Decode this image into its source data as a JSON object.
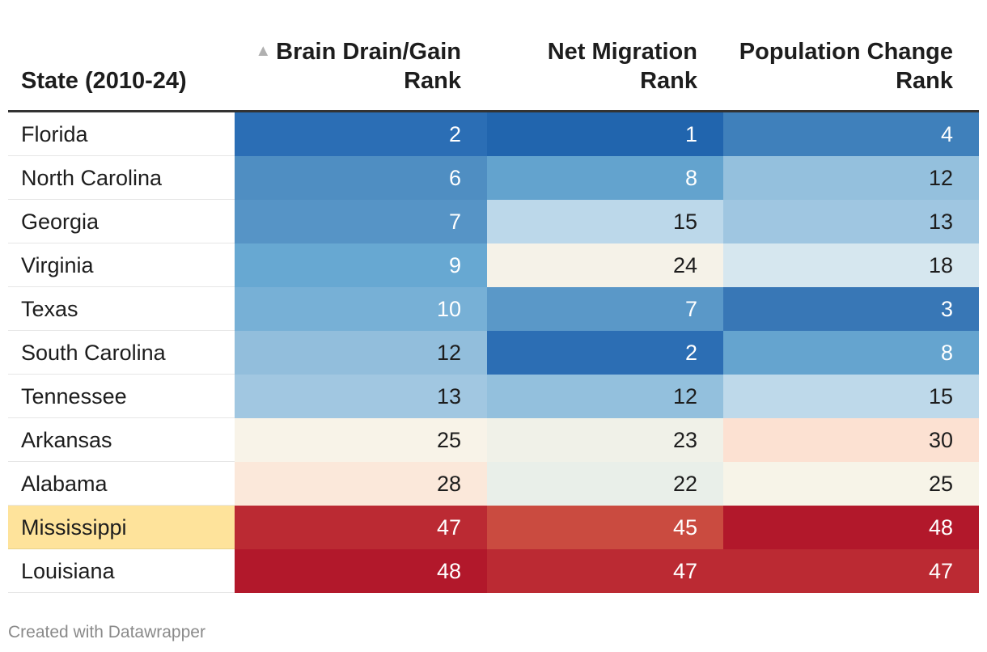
{
  "chart_data": {
    "type": "table",
    "columns": [
      "State (2010-24)",
      "Brain Drain/Gain Rank",
      "Net Migration Rank",
      "Population Change Rank"
    ],
    "sorted_column": "Brain Drain/Gain Rank",
    "sort_direction": "ascending",
    "rows": [
      {
        "state": "Florida",
        "brain": "2",
        "net": "1",
        "pop": "4",
        "brain_color": "#2b6eb5",
        "net_color": "#2165ae",
        "pop_color": "#3f80bb"
      },
      {
        "state": "North Carolina",
        "brain": "6",
        "net": "8",
        "pop": "12",
        "brain_color": "#4f8ec2",
        "net_color": "#63a3ce",
        "pop_color": "#94c0dd"
      },
      {
        "state": "Georgia",
        "brain": "7",
        "net": "15",
        "pop": "13",
        "brain_color": "#5694c6",
        "net_color": "#bcd8ea",
        "pop_color": "#9fc6e1"
      },
      {
        "state": "Virginia",
        "brain": "9",
        "net": "24",
        "pop": "18",
        "brain_color": "#67a8d2",
        "net_color": "#f5f2e8",
        "pop_color": "#d6e7ef"
      },
      {
        "state": "Texas",
        "brain": "10",
        "net": "7",
        "pop": "3",
        "brain_color": "#77b0d6",
        "net_color": "#5a98c8",
        "pop_color": "#3877b6"
      },
      {
        "state": "South Carolina",
        "brain": "12",
        "net": "2",
        "pop": "8",
        "brain_color": "#92bedc",
        "net_color": "#2c6eb4",
        "pop_color": "#65a4cf"
      },
      {
        "state": "Tennessee",
        "brain": "13",
        "net": "12",
        "pop": "15",
        "brain_color": "#a1c7e1",
        "net_color": "#93c0dd",
        "pop_color": "#bed9ea"
      },
      {
        "state": "Arkansas",
        "brain": "25",
        "net": "23",
        "pop": "30",
        "brain_color": "#f8f3e8",
        "net_color": "#f0f1e8",
        "pop_color": "#fce1d2"
      },
      {
        "state": "Alabama",
        "brain": "28",
        "net": "22",
        "pop": "25",
        "brain_color": "#fbe8da",
        "net_color": "#e9efe9",
        "pop_color": "#f7f4e8"
      },
      {
        "state": "Mississippi",
        "brain": "47",
        "net": "45",
        "pop": "48",
        "brain_color": "#bb2a33",
        "net_color": "#ca4b40",
        "pop_color": "#b2182b",
        "highlight": true
      },
      {
        "state": "Louisiana",
        "brain": "48",
        "net": "47",
        "pop": "47",
        "brain_color": "#b2182b",
        "net_color": "#bb2a33",
        "pop_color": "#bb2a33"
      }
    ]
  },
  "footer": "Created with Datawrapper"
}
